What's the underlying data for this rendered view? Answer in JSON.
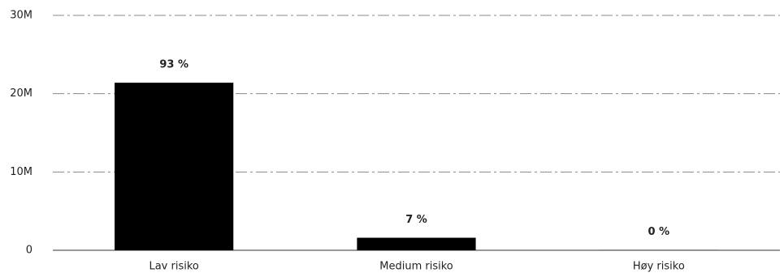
{
  "chart_data": {
    "type": "bar",
    "categories": [
      "Lav risiko",
      "Medium risiko",
      "Høy risiko"
    ],
    "values": [
      21400000,
      1600000,
      30000
    ],
    "value_labels": [
      "93 %",
      "7 %",
      "0 %"
    ],
    "color": "#000000",
    "ylim": [
      0,
      30000000
    ],
    "yticks": [
      0,
      {
        "value": 10000000,
        "label": "10M"
      },
      {
        "value": 20000000,
        "label": "20M"
      },
      {
        "value": 30000000,
        "label": "30M"
      }
    ],
    "grid": true
  }
}
